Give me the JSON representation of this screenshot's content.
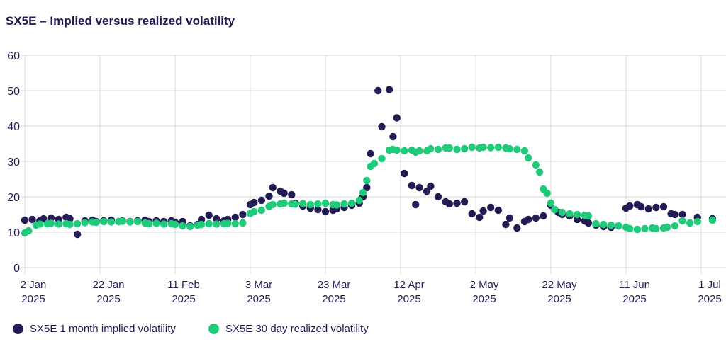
{
  "page_title": "SX5E – Implied versus realized volatility",
  "colors": {
    "implied": "#221b54",
    "realized": "#1fcb7b",
    "grid": "#d9d9d9",
    "axis_text": "#221b54",
    "background": "#ffffff"
  },
  "chart_data": {
    "type": "scatter",
    "title": "SX5E – Implied versus realized volatility",
    "xlabel": "",
    "ylabel": "",
    "grid": true,
    "legend_position": "bottom",
    "y_axis": {
      "range": [
        0,
        60
      ],
      "ticks": [
        0,
        10,
        20,
        30,
        40,
        50,
        60
      ]
    },
    "x_axis": {
      "unit": "days since 2 Jan 2025",
      "range_days": [
        0,
        187
      ],
      "ticks": [
        {
          "day": 0,
          "line1": "2 Jan",
          "line2": "2025"
        },
        {
          "day": 20,
          "line1": "22 Jan",
          "line2": "2025"
        },
        {
          "day": 40,
          "line1": "11 Feb",
          "line2": "2025"
        },
        {
          "day": 60,
          "line1": "3 Mar",
          "line2": "2025"
        },
        {
          "day": 80,
          "line1": "23 Mar",
          "line2": "2025"
        },
        {
          "day": 100,
          "line1": "12 Apr",
          "line2": "2025"
        },
        {
          "day": 120,
          "line1": "2 May",
          "line2": "2025"
        },
        {
          "day": 140,
          "line1": "22 May",
          "line2": "2025"
        },
        {
          "day": 160,
          "line1": "11 Jun",
          "line2": "2025"
        },
        {
          "day": 180,
          "line1": "1 Jul",
          "line2": "2025"
        }
      ]
    },
    "series": [
      {
        "name": "SX5E 1 month implied volatility",
        "color": "#221b54",
        "points": [
          [
            0,
            13.4
          ],
          [
            2,
            13.6
          ],
          [
            4,
            13.2
          ],
          [
            5,
            13.8
          ],
          [
            7,
            14.0
          ],
          [
            9,
            13.6
          ],
          [
            11,
            14.2
          ],
          [
            12,
            13.8
          ],
          [
            14,
            9.4
          ],
          [
            16,
            13.2
          ],
          [
            18,
            13.4
          ],
          [
            19,
            13.0
          ],
          [
            21,
            13.2
          ],
          [
            23,
            13.4
          ],
          [
            25,
            13.0
          ],
          [
            26,
            13.2
          ],
          [
            28,
            13.0
          ],
          [
            30,
            13.2
          ],
          [
            32,
            13.4
          ],
          [
            33,
            13.0
          ],
          [
            35,
            13.2
          ],
          [
            37,
            13.0
          ],
          [
            39,
            13.2
          ],
          [
            40,
            12.8
          ],
          [
            42,
            13.0
          ],
          [
            44,
            11.8
          ],
          [
            46,
            12.2
          ],
          [
            47,
            13.6
          ],
          [
            49,
            14.8
          ],
          [
            51,
            13.8
          ],
          [
            53,
            13.2
          ],
          [
            54,
            13.6
          ],
          [
            56,
            14.2
          ],
          [
            58,
            15.0
          ],
          [
            60,
            17.8
          ],
          [
            61,
            18.4
          ],
          [
            63,
            19.0
          ],
          [
            65,
            20.2
          ],
          [
            66,
            22.6
          ],
          [
            68,
            21.6
          ],
          [
            69,
            21.0
          ],
          [
            71,
            20.6
          ],
          [
            72,
            18.2
          ],
          [
            74,
            17.4
          ],
          [
            76,
            16.8
          ],
          [
            78,
            16.4
          ],
          [
            80,
            15.8
          ],
          [
            82,
            16.2
          ],
          [
            83,
            16.6
          ],
          [
            85,
            17.0
          ],
          [
            87,
            17.6
          ],
          [
            89,
            18.2
          ],
          [
            90,
            20.0
          ],
          [
            91,
            22.6
          ],
          [
            92,
            32.2
          ],
          [
            94,
            50.0
          ],
          [
            95,
            39.8
          ],
          [
            97,
            50.3
          ],
          [
            98,
            37.0
          ],
          [
            99,
            42.3
          ],
          [
            101,
            26.6
          ],
          [
            103,
            23.2
          ],
          [
            104,
            17.8
          ],
          [
            105,
            22.6
          ],
          [
            107,
            21.6
          ],
          [
            108,
            23.0
          ],
          [
            110,
            20.0
          ],
          [
            112,
            18.6
          ],
          [
            113,
            18.0
          ],
          [
            115,
            18.2
          ],
          [
            117,
            18.6
          ],
          [
            119,
            15.2
          ],
          [
            121,
            14.2
          ],
          [
            122,
            16.0
          ],
          [
            124,
            17.0
          ],
          [
            126,
            16.2
          ],
          [
            128,
            12.2
          ],
          [
            129,
            14.0
          ],
          [
            131,
            11.2
          ],
          [
            133,
            13.0
          ],
          [
            134,
            13.6
          ],
          [
            136,
            14.0
          ],
          [
            138,
            14.6
          ],
          [
            140,
            17.6
          ],
          [
            142,
            15.6
          ],
          [
            143,
            15.0
          ],
          [
            145,
            14.6
          ],
          [
            147,
            13.6
          ],
          [
            149,
            13.2
          ],
          [
            150,
            12.6
          ],
          [
            152,
            12.0
          ],
          [
            154,
            11.6
          ],
          [
            156,
            11.4
          ],
          [
            158,
            11.8
          ],
          [
            160,
            16.8
          ],
          [
            161,
            17.4
          ],
          [
            163,
            17.8
          ],
          [
            164,
            17.2
          ],
          [
            166,
            16.6
          ],
          [
            168,
            17.0
          ],
          [
            170,
            17.2
          ],
          [
            172,
            15.2
          ],
          [
            173,
            15.0
          ],
          [
            175,
            15.0
          ],
          [
            179,
            14.2
          ],
          [
            183,
            13.8
          ]
        ]
      },
      {
        "name": "SX5E 30 day realized volatility",
        "color": "#1fcb7b",
        "points": [
          [
            0,
            9.8
          ],
          [
            1,
            10.4
          ],
          [
            3,
            12.0
          ],
          [
            4,
            12.3
          ],
          [
            6,
            12.4
          ],
          [
            7,
            12.5
          ],
          [
            9,
            12.3
          ],
          [
            11,
            12.4
          ],
          [
            12,
            12.2
          ],
          [
            14,
            12.4
          ],
          [
            16,
            12.7
          ],
          [
            18,
            12.9
          ],
          [
            19,
            12.8
          ],
          [
            21,
            13.0
          ],
          [
            23,
            12.9
          ],
          [
            25,
            13.0
          ],
          [
            26,
            13.1
          ],
          [
            28,
            12.9
          ],
          [
            30,
            13.0
          ],
          [
            32,
            12.6
          ],
          [
            33,
            12.4
          ],
          [
            35,
            12.5
          ],
          [
            37,
            12.3
          ],
          [
            39,
            12.4
          ],
          [
            40,
            12.2
          ],
          [
            42,
            11.8
          ],
          [
            44,
            11.6
          ],
          [
            46,
            12.0
          ],
          [
            47,
            12.2
          ],
          [
            49,
            12.4
          ],
          [
            51,
            12.3
          ],
          [
            53,
            12.4
          ],
          [
            54,
            12.5
          ],
          [
            56,
            12.4
          ],
          [
            58,
            12.6
          ],
          [
            60,
            15.3
          ],
          [
            61,
            15.8
          ],
          [
            63,
            16.2
          ],
          [
            65,
            17.3
          ],
          [
            66,
            17.8
          ],
          [
            68,
            18.0
          ],
          [
            69,
            18.2
          ],
          [
            71,
            18.0
          ],
          [
            72,
            17.9
          ],
          [
            74,
            18.1
          ],
          [
            76,
            17.8
          ],
          [
            78,
            18.0
          ],
          [
            80,
            18.2
          ],
          [
            82,
            17.8
          ],
          [
            83,
            17.7
          ],
          [
            85,
            18.0
          ],
          [
            87,
            18.2
          ],
          [
            89,
            19.0
          ],
          [
            90,
            21.2
          ],
          [
            91,
            24.6
          ],
          [
            92,
            28.6
          ],
          [
            93,
            29.4
          ],
          [
            95,
            30.8
          ],
          [
            97,
            33.2
          ],
          [
            98,
            33.4
          ],
          [
            99,
            33.2
          ],
          [
            101,
            33.0
          ],
          [
            103,
            33.2
          ],
          [
            104,
            32.6
          ],
          [
            105,
            33.0
          ],
          [
            107,
            33.0
          ],
          [
            108,
            33.6
          ],
          [
            110,
            33.4
          ],
          [
            112,
            33.8
          ],
          [
            113,
            33.8
          ],
          [
            115,
            33.4
          ],
          [
            117,
            33.6
          ],
          [
            119,
            34.0
          ],
          [
            121,
            33.8
          ],
          [
            122,
            34.0
          ],
          [
            124,
            33.9
          ],
          [
            126,
            34.0
          ],
          [
            128,
            33.8
          ],
          [
            129,
            33.6
          ],
          [
            131,
            33.4
          ],
          [
            133,
            33.0
          ],
          [
            134,
            31.0
          ],
          [
            136,
            29.0
          ],
          [
            137,
            27.0
          ],
          [
            138,
            22.2
          ],
          [
            139,
            21.0
          ],
          [
            140,
            18.2
          ],
          [
            141,
            16.4
          ],
          [
            143,
            15.6
          ],
          [
            145,
            15.2
          ],
          [
            147,
            15.0
          ],
          [
            149,
            14.8
          ],
          [
            150,
            14.6
          ],
          [
            152,
            12.4
          ],
          [
            154,
            12.2
          ],
          [
            156,
            12.0
          ],
          [
            158,
            11.8
          ],
          [
            160,
            11.4
          ],
          [
            161,
            11.0
          ],
          [
            163,
            10.8
          ],
          [
            165,
            11.0
          ],
          [
            167,
            11.2
          ],
          [
            168,
            11.0
          ],
          [
            170,
            11.2
          ],
          [
            171,
            11.4
          ],
          [
            173,
            11.8
          ],
          [
            175,
            13.2
          ],
          [
            177,
            12.6
          ],
          [
            179,
            13.0
          ],
          [
            183,
            13.4
          ]
        ]
      }
    ]
  }
}
